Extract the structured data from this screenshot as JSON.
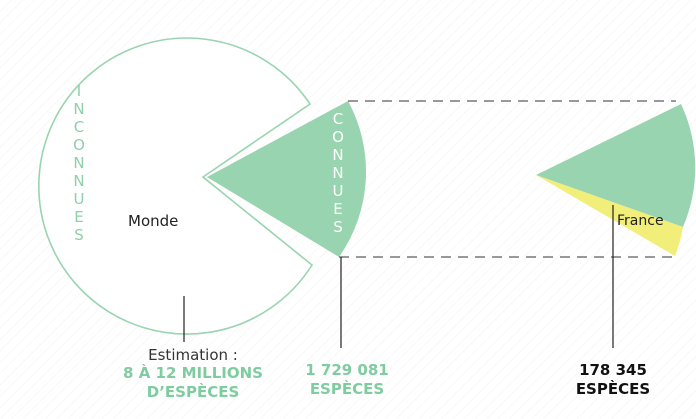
{
  "labels": {
    "world": "Monde",
    "france": "France",
    "unknown_vertical": "INCONNUES",
    "known_vertical": "CONNUES"
  },
  "captions": {
    "world": {
      "prefix": "Estimation :",
      "line1": "8 À 12 MILLIONS",
      "line2": "D’ESPÈCES"
    },
    "known": {
      "line1": "1 729 081",
      "line2": "ESPÈCES"
    },
    "france": {
      "line1": "178 345",
      "line2": "ESPÈCES"
    }
  },
  "colors": {
    "green": "#99d4b0",
    "green_text": "#7ecc9f",
    "yellow": "#f2ee7a",
    "outline": "#99d4b0"
  }
}
